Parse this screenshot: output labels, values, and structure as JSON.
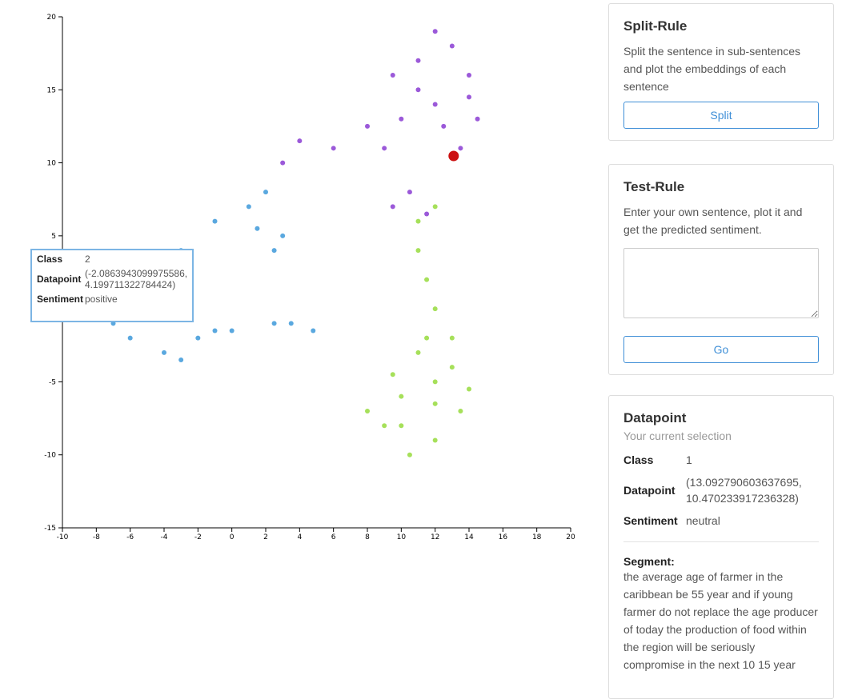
{
  "chart_data": {
    "type": "scatter",
    "title": "",
    "xlabel": "",
    "ylabel": "",
    "xlim": [
      -10,
      20
    ],
    "ylim": [
      -15,
      20
    ],
    "x_ticks": [
      "-10",
      "-8",
      "-6",
      "-4",
      "-2",
      "0",
      "2",
      "4",
      "6",
      "8",
      "10",
      "12",
      "14",
      "16",
      "18",
      "20"
    ],
    "y_ticks": [
      "-15",
      "-10",
      "-5",
      "0",
      "5",
      "10",
      "15",
      "20"
    ],
    "class_colors": {
      "0": "#9b59d9",
      "1": "#5aa8df",
      "2": "#a6e05a"
    },
    "clusters": [
      {
        "class": "0",
        "points": [
          [
            9,
            11
          ],
          [
            10,
            13
          ],
          [
            11,
            15
          ],
          [
            12,
            14
          ],
          [
            11,
            17
          ],
          [
            13,
            18
          ],
          [
            14,
            16
          ],
          [
            14.5,
            13
          ],
          [
            13.5,
            11
          ],
          [
            8,
            12.5
          ],
          [
            6,
            11
          ],
          [
            3,
            10
          ],
          [
            9.5,
            16
          ],
          [
            12,
            19
          ],
          [
            14,
            14.5
          ],
          [
            10.5,
            8
          ],
          [
            11.5,
            6.5
          ],
          [
            9.5,
            7
          ],
          [
            4,
            11.5
          ],
          [
            12.5,
            12.5
          ]
        ]
      },
      {
        "class": "1",
        "points": [
          [
            -8,
            1
          ],
          [
            -6,
            -2
          ],
          [
            -4,
            -3
          ],
          [
            -2,
            -2
          ],
          [
            -1,
            -1.5
          ],
          [
            -5,
            2
          ],
          [
            -3,
            4
          ],
          [
            -1,
            6
          ],
          [
            1,
            7
          ],
          [
            2,
            8
          ],
          [
            3,
            5
          ],
          [
            2.5,
            4
          ],
          [
            -7,
            -1
          ],
          [
            -3,
            -3.5
          ],
          [
            0,
            -1.5
          ],
          [
            2.5,
            -1
          ],
          [
            3.5,
            -1
          ],
          [
            4.8,
            -1.5
          ],
          [
            -5,
            0
          ],
          [
            1.5,
            5.5
          ]
        ]
      },
      {
        "class": "2",
        "points": [
          [
            11,
            4
          ],
          [
            11.5,
            2
          ],
          [
            12,
            0
          ],
          [
            11.5,
            -2
          ],
          [
            13,
            -4
          ],
          [
            12,
            -5
          ],
          [
            10,
            -6
          ],
          [
            9,
            -8
          ],
          [
            10.5,
            -10
          ],
          [
            12,
            -9
          ],
          [
            13.5,
            -7
          ],
          [
            14,
            -5.5
          ],
          [
            8,
            -7
          ],
          [
            11,
            -3
          ],
          [
            13,
            -2
          ],
          [
            9.5,
            -4.5
          ],
          [
            11,
            6
          ],
          [
            12,
            7
          ],
          [
            10,
            -8
          ],
          [
            12,
            -6.5
          ]
        ]
      }
    ],
    "highlight": {
      "x": 13.092790603637695,
      "y": 10.470233917236328,
      "color": "#cc1111"
    }
  },
  "tooltip": {
    "class_label": "Class",
    "class_value": "2",
    "datapoint_label": "Datapoint",
    "datapoint_value": "(-2.0863943099975586, 4.199711322784424)",
    "sentiment_label": "Sentiment",
    "sentiment_value": "positive"
  },
  "split_rule": {
    "title": "Split-Rule",
    "description": "Split the sentence in sub-sentences and plot the embeddings of each sentence",
    "button": "Split"
  },
  "test_rule": {
    "title": "Test-Rule",
    "description": "Enter your own sentence, plot it and get the predicted sentiment.",
    "input_value": "",
    "button": "Go"
  },
  "datapoint": {
    "title": "Datapoint",
    "subtitle": "Your current selection",
    "class_label": "Class",
    "class_value": "1",
    "datapoint_label": "Datapoint",
    "datapoint_value": "(13.092790603637695, 10.470233917236328)",
    "sentiment_label": "Sentiment",
    "sentiment_value": "neutral",
    "segment_label": "Segment:",
    "segment_text": "the average age of farmer in the caribbean be 55 year and if young farmer do not replace the age producer of today the production of food within the region will be seriously compromise in the next 10 15 year"
  }
}
